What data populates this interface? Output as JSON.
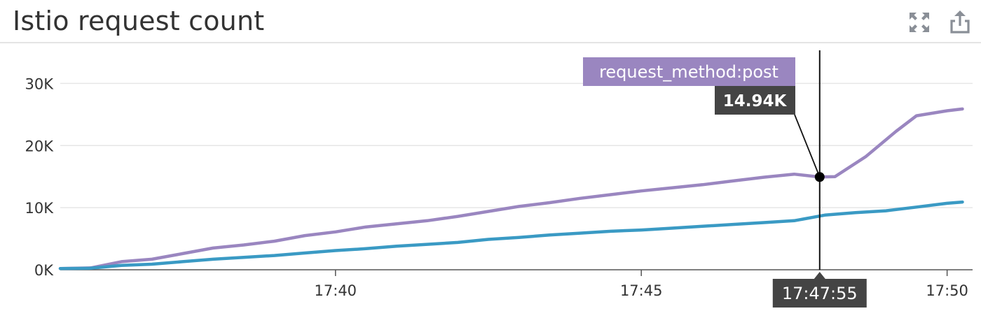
{
  "widget": {
    "title": "Istio request count",
    "icons": [
      "expand-icon",
      "share-icon"
    ]
  },
  "chart_data": {
    "type": "line",
    "title": "Istio request count",
    "xlabel": "",
    "ylabel": "",
    "x_ticks": [
      "17:40",
      "17:45",
      "17:50"
    ],
    "y_ticks": [
      "0K",
      "10K",
      "20K",
      "30K"
    ],
    "ylim": [
      0,
      35000
    ],
    "xlim": [
      "17:35:30",
      "17:50:25"
    ],
    "grid": true,
    "colors": {
      "request_method:post": "#9a86c0",
      "other": "#3a9ac4",
      "tooltip_label_bg": "#9a86c0",
      "tooltip_value_bg": "#444444"
    },
    "series": [
      {
        "name": "request_method:post",
        "x": [
          "17:35:30",
          "17:36:00",
          "17:36:30",
          "17:37:00",
          "17:37:30",
          "17:38:00",
          "17:38:30",
          "17:39:00",
          "17:39:30",
          "17:40:00",
          "17:40:30",
          "17:41:00",
          "17:41:30",
          "17:42:00",
          "17:42:30",
          "17:43:00",
          "17:43:30",
          "17:44:00",
          "17:44:30",
          "17:45:00",
          "17:45:30",
          "17:46:00",
          "17:46:30",
          "17:47:00",
          "17:47:30",
          "17:47:55",
          "17:48:10",
          "17:48:40",
          "17:49:10",
          "17:49:30",
          "17:50:00",
          "17:50:15"
        ],
        "values": [
          200,
          300,
          1300,
          1700,
          2600,
          3500,
          4000,
          4600,
          5500,
          6100,
          6900,
          7400,
          7900,
          8600,
          9400,
          10200,
          10800,
          11500,
          12100,
          12700,
          13200,
          13700,
          14300,
          14900,
          15400,
          14940,
          15000,
          18200,
          22300,
          24800,
          25600,
          25900
        ]
      },
      {
        "name": "",
        "x": [
          "17:35:30",
          "17:36:00",
          "17:36:30",
          "17:37:00",
          "17:37:30",
          "17:38:00",
          "17:38:30",
          "17:39:00",
          "17:39:30",
          "17:40:00",
          "17:40:30",
          "17:41:00",
          "17:41:30",
          "17:42:00",
          "17:42:30",
          "17:43:00",
          "17:43:30",
          "17:44:00",
          "17:44:30",
          "17:45:00",
          "17:45:30",
          "17:46:00",
          "17:46:30",
          "17:47:00",
          "17:47:30",
          "17:48:00",
          "17:48:30",
          "17:49:00",
          "17:49:30",
          "17:50:00",
          "17:50:15"
        ],
        "values": [
          200,
          250,
          700,
          900,
          1300,
          1700,
          2000,
          2300,
          2700,
          3100,
          3400,
          3800,
          4100,
          4400,
          4900,
          5200,
          5600,
          5900,
          6200,
          6400,
          6700,
          7000,
          7300,
          7600,
          7900,
          8800,
          9200,
          9500,
          10100,
          10700,
          10900
        ]
      }
    ],
    "tooltip": {
      "series_label": "request_method:post",
      "value_label": "14.94K",
      "time_label": "17:47:55",
      "x": "17:47:55",
      "y": 14940
    }
  }
}
